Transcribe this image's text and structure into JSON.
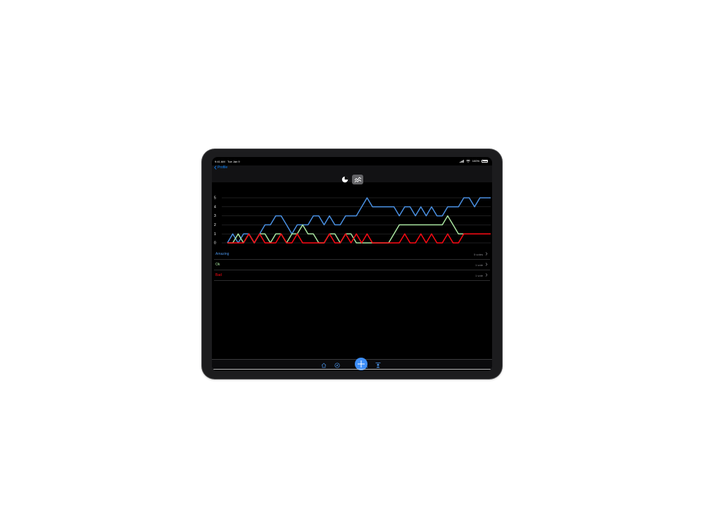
{
  "status_bar": {
    "time": "9:41 AM",
    "date": "Tue Jan 9",
    "battery": "100%"
  },
  "nav": {
    "back_label": "Profile"
  },
  "segmented": [
    "pie-chart-icon",
    "line-chart-icon"
  ],
  "chart_data": {
    "type": "line",
    "x": [
      1,
      2,
      3,
      4,
      5,
      6,
      7,
      8,
      9,
      10,
      11,
      12,
      13,
      14,
      15,
      16,
      17,
      18,
      19,
      20,
      21,
      22,
      23,
      24,
      25,
      26,
      27,
      28,
      29,
      30,
      31,
      32,
      33,
      34,
      35,
      36,
      37,
      38,
      39,
      40,
      41,
      42,
      43,
      44,
      45,
      46,
      47,
      48,
      49,
      50
    ],
    "ylim": [
      0,
      5
    ],
    "yticks": [
      "0",
      "1",
      "2",
      "3",
      "4",
      "5"
    ],
    "grid": true,
    "legend": "none",
    "series": [
      {
        "name": "Amazing",
        "color": "#4a90e2",
        "values": [
          0,
          1,
          0,
          1,
          1,
          0,
          1,
          2,
          2,
          3,
          3,
          2,
          1,
          2,
          2,
          2,
          3,
          3,
          2,
          3,
          2,
          2,
          3,
          3,
          3,
          4,
          5,
          4,
          4,
          4,
          4,
          4,
          3,
          4,
          4,
          3,
          4,
          3,
          4,
          3,
          3,
          4,
          4,
          4,
          5,
          5,
          4,
          5,
          5,
          5
        ]
      },
      {
        "name": "Ok",
        "color": "#a9e5a0",
        "values": [
          0,
          0,
          1,
          0,
          1,
          0,
          1,
          1,
          0,
          1,
          1,
          0,
          1,
          1,
          2,
          1,
          1,
          0,
          0,
          1,
          1,
          0,
          1,
          1,
          0,
          0,
          0,
          0,
          0,
          0,
          0,
          1,
          2,
          2,
          2,
          2,
          2,
          2,
          2,
          2,
          2,
          3,
          2,
          1,
          1,
          1,
          1,
          1,
          1,
          1
        ]
      },
      {
        "name": "Bad",
        "color": "#ff0a14",
        "values": [
          0,
          0,
          0,
          0,
          1,
          0,
          1,
          0,
          0,
          0,
          1,
          0,
          0,
          1,
          0,
          0,
          0,
          0,
          0,
          1,
          0,
          0,
          1,
          0,
          1,
          0,
          1,
          0,
          0,
          0,
          0,
          0,
          0,
          1,
          0,
          0,
          1,
          0,
          1,
          0,
          0,
          1,
          0,
          0,
          1,
          1,
          1,
          1,
          1,
          1
        ]
      }
    ]
  },
  "list": [
    {
      "label": "Amazing",
      "color": "#4a90e2",
      "count": "5 votes"
    },
    {
      "label": "Ok",
      "color": "#a9e5a0",
      "count": "1 vote"
    },
    {
      "label": "Bad",
      "color": "#ff0a14",
      "count": "1 vote"
    }
  ],
  "tab_bar": [
    "home-icon",
    "compass-icon",
    "plus-icon",
    "search-icon",
    "profile-icon"
  ]
}
